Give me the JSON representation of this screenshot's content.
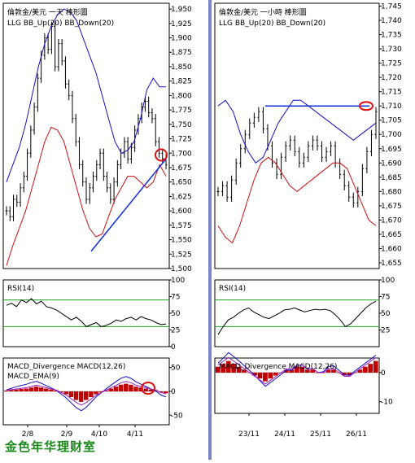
{
  "watermark": "金色年华理财室",
  "colors": {
    "price": "#000000",
    "bb": "#1010c8",
    "bbdown": "#d01010",
    "trend": "#1030e0",
    "rsi": "#000000",
    "rsiband": "#18a018",
    "macdpos": "#c00000",
    "macdline": "#1010c8",
    "macdema": "#a020c0",
    "circle": "#e01010"
  },
  "chart_data": [
    {
      "type": "line",
      "panel": "left-price",
      "title": "倫敦金/美元 一天 棒形圖",
      "legend": [
        "LLG",
        "BB_Up(20)",
        "BB_Down(20)"
      ],
      "y_ticks": [
        "1,950",
        "1,925",
        "1,900",
        "1,875",
        "1,850",
        "1,825",
        "1,800",
        "1,775",
        "1,750",
        "1,725",
        "1,700",
        "1,675",
        "1,650",
        "1,625",
        "1,600",
        "1,575",
        "1,550",
        "1,525",
        "1,500"
      ],
      "ylim": [
        1500,
        1960
      ],
      "series": [
        {
          "name": "LLG",
          "values": [
            1600,
            1590,
            1620,
            1615,
            1640,
            1660,
            1700,
            1740,
            1780,
            1830,
            1870,
            1900,
            1880,
            1920,
            1850,
            1890,
            1860,
            1820,
            1800,
            1760,
            1720,
            1680,
            1650,
            1620,
            1640,
            1660,
            1680,
            1700,
            1660,
            1640,
            1620,
            1650,
            1680,
            1700,
            1720,
            1690,
            1710,
            1740,
            1760,
            1780,
            1790,
            1770,
            1760,
            1720,
            1700,
            1690,
            1680
          ]
        },
        {
          "name": "BB_Up(20)",
          "values": [
            1650,
            1680,
            1710,
            1750,
            1800,
            1850,
            1890,
            1920,
            1940,
            1950,
            1945,
            1930,
            1900,
            1870,
            1840,
            1800,
            1760,
            1720,
            1700,
            1705,
            1720,
            1760,
            1810,
            1830,
            1815,
            1815
          ]
        },
        {
          "name": "BB_Down(20)",
          "values": [
            1505,
            1540,
            1570,
            1600,
            1640,
            1680,
            1720,
            1745,
            1740,
            1720,
            1680,
            1640,
            1600,
            1570,
            1555,
            1560,
            1590,
            1620,
            1640,
            1660,
            1660,
            1650,
            1640,
            1650,
            1680,
            1660
          ]
        },
        {
          "name": "Trend",
          "values": [
            1530,
            1690
          ]
        }
      ]
    },
    {
      "type": "line",
      "panel": "right-price",
      "title": "倫敦金/美元 一小時 棒形圖",
      "legend": [
        "LLG",
        "BB_Up(20)",
        "BB_Down(20)"
      ],
      "y_ticks": [
        "1,745",
        "1,740",
        "1,735",
        "1,730",
        "1,725",
        "1,720",
        "1,715",
        "1,710",
        "1,705",
        "1,700",
        "1,695",
        "1,690",
        "1,685",
        "1,680",
        "1,675",
        "1,670",
        "1,665",
        "1,660",
        "1,655"
      ],
      "ylim": [
        1653,
        1746
      ],
      "series": [
        {
          "name": "LLG",
          "values": [
            1680,
            1682,
            1678,
            1684,
            1690,
            1695,
            1700,
            1704,
            1706,
            1708,
            1702,
            1696,
            1690,
            1686,
            1692,
            1696,
            1698,
            1694,
            1690,
            1692,
            1696,
            1698,
            1696,
            1692,
            1694,
            1696,
            1690,
            1686,
            1682,
            1678,
            1676,
            1680,
            1688,
            1694,
            1700,
            1708
          ]
        },
        {
          "name": "BB_Up(20)",
          "values": [
            1710,
            1712,
            1708,
            1700,
            1694,
            1690,
            1692,
            1698,
            1704,
            1708,
            1712,
            1712,
            1710,
            1708,
            1706,
            1704,
            1702,
            1700,
            1698,
            1700,
            1702,
            1704
          ]
        },
        {
          "name": "BB_Down(20)",
          "values": [
            1668,
            1664,
            1662,
            1668,
            1676,
            1684,
            1690,
            1692,
            1690,
            1686,
            1682,
            1680,
            1682,
            1684,
            1686,
            1688,
            1690,
            1690,
            1688,
            1682,
            1676,
            1670,
            1668
          ]
        },
        {
          "name": "Resistance",
          "values": [
            1710,
            1710
          ]
        }
      ]
    },
    {
      "type": "line",
      "panel": "left-rsi",
      "title": "RSI(14)",
      "y_ticks": [
        "100",
        "75",
        "50",
        "25",
        "0"
      ],
      "ylim": [
        0,
        100
      ],
      "bands": [
        70,
        30
      ],
      "values": [
        62,
        65,
        60,
        70,
        66,
        72,
        64,
        68,
        60,
        58,
        55,
        50,
        45,
        40,
        44,
        38,
        30,
        33,
        36,
        30,
        32,
        35,
        40,
        38,
        42,
        44,
        40,
        45,
        42,
        40,
        36,
        33,
        34
      ]
    },
    {
      "type": "line",
      "panel": "right-rsi",
      "title": "RSI(14)",
      "y_ticks": [
        "100",
        "75",
        "50",
        "25"
      ],
      "ylim": [
        0,
        100
      ],
      "bands": [
        70,
        30
      ],
      "values": [
        18,
        30,
        40,
        44,
        50,
        55,
        58,
        52,
        48,
        44,
        42,
        46,
        50,
        55,
        56,
        58,
        55,
        52,
        54,
        56,
        55,
        56,
        54,
        48,
        40,
        30,
        34,
        42,
        50,
        58,
        64,
        68
      ]
    },
    {
      "type": "bar",
      "panel": "left-macd",
      "title": "MACD_Divergence  MACD(12,26)",
      "title2": "MACD_EMA(9)",
      "y_ticks": [
        "50",
        "0",
        "-50"
      ],
      "ylim": [
        -70,
        70
      ],
      "values": [
        2,
        3,
        4,
        5,
        6,
        8,
        10,
        8,
        6,
        4,
        2,
        -2,
        -6,
        -12,
        -18,
        -22,
        -18,
        -12,
        -6,
        -2,
        2,
        6,
        10,
        14,
        16,
        14,
        10,
        8,
        6,
        4,
        2,
        -2,
        -4
      ]
    },
    {
      "type": "bar",
      "panel": "right-macd",
      "title": "MACD_Divergence  MACD(12,26)",
      "y_ticks": [
        "0",
        "-10"
      ],
      "ylim": [
        -14,
        5
      ],
      "values": [
        2,
        3,
        4,
        3,
        2,
        1,
        0,
        -1,
        -2,
        -3,
        -2,
        -1,
        0,
        1,
        1,
        2,
        2,
        1,
        1,
        0,
        0,
        1,
        1,
        0,
        -1,
        -1,
        0,
        1,
        2,
        3,
        4
      ]
    },
    {
      "type": "table",
      "panel": "x-axis",
      "left_ticks": [
        "2/8",
        "2/9",
        "4/10",
        "4/11"
      ],
      "right_ticks": [
        "23/11",
        "24/11",
        "25/11",
        "26/11"
      ]
    }
  ]
}
